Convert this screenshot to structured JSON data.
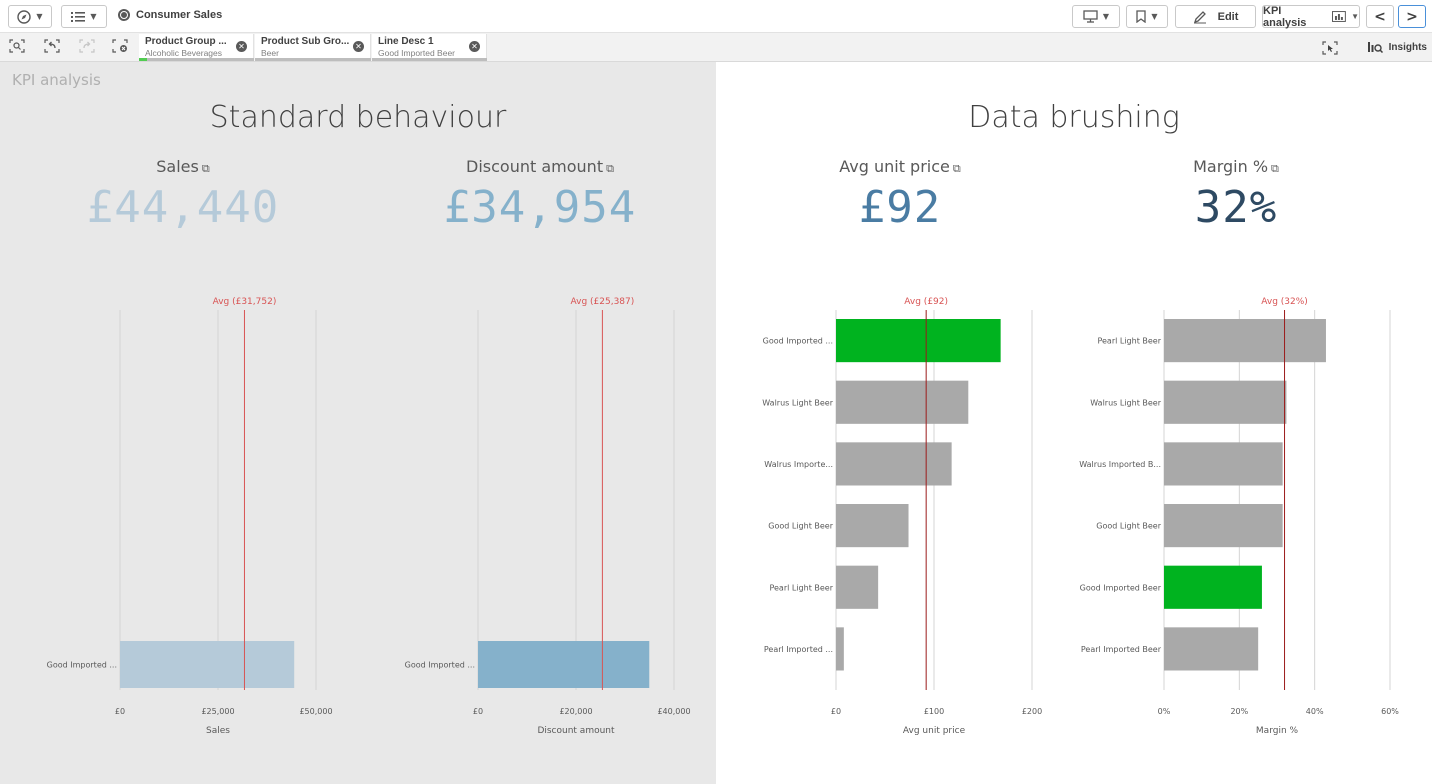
{
  "toolbar": {
    "app_name": "Consumer Sales",
    "edit_label": "Edit",
    "sheet_name": "KPI analysis",
    "prev_label": "<",
    "next_label": ">"
  },
  "selections": {
    "chips": [
      {
        "field": "Product Group ...",
        "value": "Alcoholic Beverages"
      },
      {
        "field": "Product Sub Gro...",
        "value": "Beer"
      },
      {
        "field": "Line Desc 1",
        "value": "Good Imported Beer"
      }
    ],
    "insights_label": "Insights"
  },
  "sheet": {
    "title": "KPI analysis",
    "left_section_title": "Standard behaviour",
    "right_section_title": "Data brushing"
  },
  "kpis": [
    {
      "label": "Sales",
      "value": "£44,440",
      "color": "#b5cad9"
    },
    {
      "label": "Discount amount",
      "value": "£34,954",
      "color": "#85b1cb"
    },
    {
      "label": "Avg unit price",
      "value": "£92",
      "color": "#4a7ca3"
    },
    {
      "label": "Margin %",
      "value": "32%",
      "color": "#2e4a63"
    }
  ],
  "chart_data": [
    {
      "type": "bar",
      "orientation": "horizontal",
      "categories": [
        "Good Imported ..."
      ],
      "values": [
        44440
      ],
      "xlim": [
        0,
        50000
      ],
      "ticks": [
        0,
        25000,
        50000
      ],
      "tick_labels": [
        "£0",
        "£25,000",
        "£50,000"
      ],
      "xlabel": "Sales",
      "reference_line": {
        "label": "Avg (£31,752)",
        "value": 31752
      },
      "bar_color": "#b5cad9",
      "highlight_color": "#b5cad9",
      "highlight_index": -1
    },
    {
      "type": "bar",
      "orientation": "horizontal",
      "categories": [
        "Good Imported ..."
      ],
      "values": [
        34954
      ],
      "xlim": [
        0,
        40000
      ],
      "ticks": [
        0,
        20000,
        40000
      ],
      "tick_labels": [
        "£0",
        "£20,000",
        "£40,000"
      ],
      "xlabel": "Discount amount",
      "reference_line": {
        "label": "Avg (£25,387)",
        "value": 25387
      },
      "bar_color": "#85b1cb",
      "highlight_color": "#85b1cb",
      "highlight_index": -1
    },
    {
      "type": "bar",
      "orientation": "horizontal",
      "categories": [
        "Good Imported ...",
        "Walrus Light Beer",
        "Walrus Importe...",
        "Good Light Beer",
        "Pearl Light Beer",
        "Pearl Imported ..."
      ],
      "values": [
        168,
        135,
        118,
        74,
        43,
        8
      ],
      "xlim": [
        0,
        200
      ],
      "ticks": [
        0,
        100,
        200
      ],
      "tick_labels": [
        "£0",
        "£100",
        "£200"
      ],
      "xlabel": "Avg unit price",
      "reference_line": {
        "label": "Avg (£92)",
        "value": 92
      },
      "bar_color": "#a9a9a9",
      "highlight_color": "#00b31f",
      "highlight_index": 0
    },
    {
      "type": "bar",
      "orientation": "horizontal",
      "categories": [
        "Pearl Light Beer",
        "Walrus Light Beer",
        "Walrus Imported B...",
        "Good Light Beer",
        "Good Imported Beer",
        "Pearl Imported Beer"
      ],
      "values": [
        43,
        32.5,
        31.5,
        31.5,
        26,
        25
      ],
      "xlim": [
        0,
        60
      ],
      "ticks": [
        0,
        20,
        40,
        60
      ],
      "tick_labels": [
        "0%",
        "20%",
        "40%",
        "60%"
      ],
      "xlabel": "Margin %",
      "reference_line": {
        "label": "Avg (32%)",
        "value": 32
      },
      "bar_color": "#a9a9a9",
      "highlight_color": "#00b31f",
      "highlight_index": 4
    }
  ]
}
